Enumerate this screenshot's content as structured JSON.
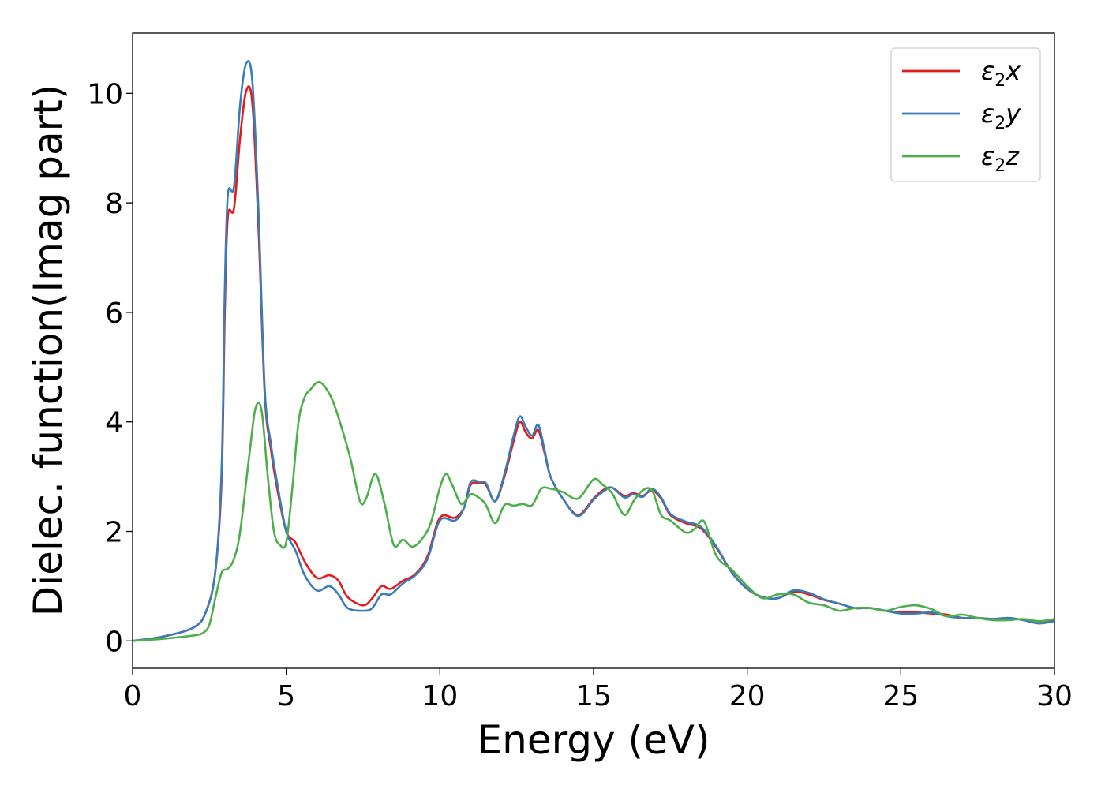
{
  "chart_data": {
    "type": "line",
    "title": "",
    "xlabel": "Energy (eV)",
    "ylabel": "Dielec. function(Imag part)",
    "xlim": [
      0,
      30
    ],
    "ylim": [
      -0.5,
      11.1
    ],
    "xticks": [
      0,
      5,
      10,
      15,
      20,
      25,
      30
    ],
    "xtick_labels": [
      "0",
      "5",
      "10",
      "15",
      "20",
      "25",
      "30"
    ],
    "yticks": [
      0,
      2,
      4,
      6,
      8,
      10
    ],
    "ytick_labels": [
      "0",
      "2",
      "4",
      "6",
      "8",
      "10"
    ],
    "grid": false,
    "legend": "top-right",
    "series": [
      {
        "name": "ε2x",
        "legend_main": "ε",
        "legend_sub": "2",
        "legend_var": "x",
        "color": "#e41a1c",
        "x": [
          0,
          1,
          2,
          2.4,
          2.7,
          2.9,
          3.0,
          3.1,
          3.3,
          3.5,
          3.7,
          3.9,
          4.1,
          4.3,
          4.5,
          4.7,
          5.0,
          5.3,
          5.6,
          6.0,
          6.4,
          6.7,
          7.0,
          7.5,
          7.8,
          8.1,
          8.4,
          8.8,
          9.2,
          9.6,
          10.0,
          10.5,
          10.8,
          11.0,
          11.3,
          11.5,
          11.8,
          12.1,
          12.4,
          12.6,
          12.8,
          13.0,
          13.2,
          13.4,
          13.6,
          14.0,
          14.5,
          15.0,
          15.3,
          15.6,
          16.0,
          16.3,
          16.6,
          16.9,
          17.2,
          17.5,
          18.0,
          18.5,
          19.0,
          19.5,
          20.0,
          20.5,
          21.0,
          21.5,
          22.0,
          22.5,
          23.0,
          23.5,
          24.0,
          24.5,
          25.0,
          25.5,
          26.0,
          26.5,
          27.0,
          27.5,
          28.0,
          28.5,
          29.0,
          29.5,
          30.0
        ],
        "y": [
          0.0,
          0.08,
          0.25,
          0.55,
          1.3,
          3.0,
          6.0,
          7.75,
          7.9,
          9.2,
          10.05,
          9.8,
          7.5,
          4.5,
          3.5,
          2.8,
          2.0,
          1.8,
          1.45,
          1.15,
          1.2,
          1.1,
          0.8,
          0.65,
          0.78,
          1.0,
          0.95,
          1.1,
          1.22,
          1.55,
          2.25,
          2.25,
          2.45,
          2.85,
          2.88,
          2.85,
          2.55,
          3.0,
          3.65,
          4.0,
          3.8,
          3.7,
          3.85,
          3.45,
          3.0,
          2.6,
          2.3,
          2.6,
          2.75,
          2.8,
          2.65,
          2.7,
          2.65,
          2.75,
          2.6,
          2.3,
          2.15,
          2.05,
          1.7,
          1.25,
          0.95,
          0.8,
          0.78,
          0.9,
          0.85,
          0.75,
          0.68,
          0.6,
          0.6,
          0.55,
          0.52,
          0.52,
          0.5,
          0.48,
          0.42,
          0.42,
          0.4,
          0.42,
          0.38,
          0.32,
          0.38
        ]
      },
      {
        "name": "ε2y",
        "legend_main": "ε",
        "legend_sub": "2",
        "legend_var": "y",
        "color": "#377eb8",
        "x": [
          0,
          1,
          2,
          2.4,
          2.7,
          2.9,
          3.0,
          3.1,
          3.3,
          3.5,
          3.7,
          3.9,
          4.1,
          4.3,
          4.5,
          4.7,
          5.0,
          5.3,
          5.6,
          6.0,
          6.4,
          6.7,
          7.0,
          7.5,
          7.8,
          8.1,
          8.4,
          8.8,
          9.2,
          9.6,
          10.0,
          10.5,
          10.8,
          11.0,
          11.3,
          11.5,
          11.8,
          12.1,
          12.4,
          12.6,
          12.8,
          13.0,
          13.2,
          13.4,
          13.6,
          14.0,
          14.5,
          15.0,
          15.3,
          15.6,
          16.0,
          16.3,
          16.6,
          16.9,
          17.2,
          17.5,
          18.0,
          18.5,
          19.0,
          19.5,
          20.0,
          20.5,
          21.0,
          21.5,
          22.0,
          22.5,
          23.0,
          23.5,
          24.0,
          24.5,
          25.0,
          25.5,
          26.0,
          26.5,
          27.0,
          27.5,
          28.0,
          28.5,
          29.0,
          29.5,
          30.0
        ],
        "y": [
          0.0,
          0.08,
          0.25,
          0.55,
          1.3,
          3.2,
          6.4,
          8.15,
          8.3,
          9.8,
          10.55,
          10.2,
          7.8,
          4.6,
          3.6,
          2.9,
          2.0,
          1.65,
          1.2,
          0.92,
          1.0,
          0.85,
          0.6,
          0.55,
          0.6,
          0.85,
          0.85,
          1.05,
          1.2,
          1.5,
          2.2,
          2.2,
          2.45,
          2.9,
          2.9,
          2.88,
          2.55,
          3.05,
          3.75,
          4.1,
          3.9,
          3.75,
          3.95,
          3.5,
          3.0,
          2.6,
          2.28,
          2.58,
          2.72,
          2.8,
          2.62,
          2.68,
          2.63,
          2.78,
          2.62,
          2.32,
          2.18,
          2.08,
          1.72,
          1.25,
          0.95,
          0.8,
          0.78,
          0.92,
          0.88,
          0.76,
          0.68,
          0.6,
          0.6,
          0.55,
          0.5,
          0.5,
          0.52,
          0.45,
          0.42,
          0.42,
          0.4,
          0.42,
          0.38,
          0.32,
          0.36
        ]
      },
      {
        "name": "ε2z",
        "legend_main": "ε",
        "legend_sub": "2",
        "legend_var": "z",
        "color": "#4daf4a",
        "x": [
          0,
          1,
          2,
          2.3,
          2.5,
          2.7,
          2.9,
          3.1,
          3.3,
          3.5,
          3.8,
          4.0,
          4.2,
          4.4,
          4.6,
          4.8,
          5.0,
          5.2,
          5.4,
          5.6,
          5.8,
          6.0,
          6.2,
          6.5,
          6.8,
          7.1,
          7.4,
          7.6,
          7.9,
          8.2,
          8.5,
          8.8,
          9.1,
          9.4,
          9.7,
          10.0,
          10.2,
          10.4,
          10.7,
          11.0,
          11.3,
          11.5,
          11.8,
          12.1,
          12.4,
          12.7,
          13.0,
          13.3,
          13.6,
          14.0,
          14.5,
          15.0,
          15.3,
          15.6,
          16.0,
          16.3,
          16.6,
          16.9,
          17.2,
          17.5,
          18.0,
          18.3,
          18.6,
          19.0,
          19.5,
          20.0,
          20.5,
          21.0,
          21.5,
          22.0,
          22.5,
          23.0,
          23.5,
          24.0,
          24.5,
          25.0,
          25.5,
          26.0,
          26.5,
          27.0,
          27.5,
          28.0,
          28.5,
          29.0,
          29.5,
          30.0
        ],
        "y": [
          0.0,
          0.04,
          0.1,
          0.15,
          0.3,
          0.8,
          1.25,
          1.32,
          1.5,
          2.0,
          3.4,
          4.25,
          4.2,
          3.0,
          2.0,
          1.75,
          1.8,
          2.8,
          4.0,
          4.45,
          4.6,
          4.72,
          4.68,
          4.4,
          3.9,
          3.3,
          2.55,
          2.6,
          3.05,
          2.5,
          1.75,
          1.85,
          1.72,
          1.85,
          2.15,
          2.8,
          3.05,
          2.85,
          2.5,
          2.68,
          2.6,
          2.48,
          2.15,
          2.48,
          2.47,
          2.5,
          2.48,
          2.78,
          2.78,
          2.72,
          2.6,
          2.95,
          2.85,
          2.7,
          2.3,
          2.55,
          2.75,
          2.75,
          2.3,
          2.2,
          1.98,
          2.05,
          2.18,
          1.55,
          1.3,
          1.0,
          0.78,
          0.85,
          0.85,
          0.7,
          0.65,
          0.55,
          0.6,
          0.6,
          0.55,
          0.62,
          0.65,
          0.58,
          0.45,
          0.48,
          0.42,
          0.38,
          0.38,
          0.4,
          0.36,
          0.4
        ]
      }
    ]
  }
}
